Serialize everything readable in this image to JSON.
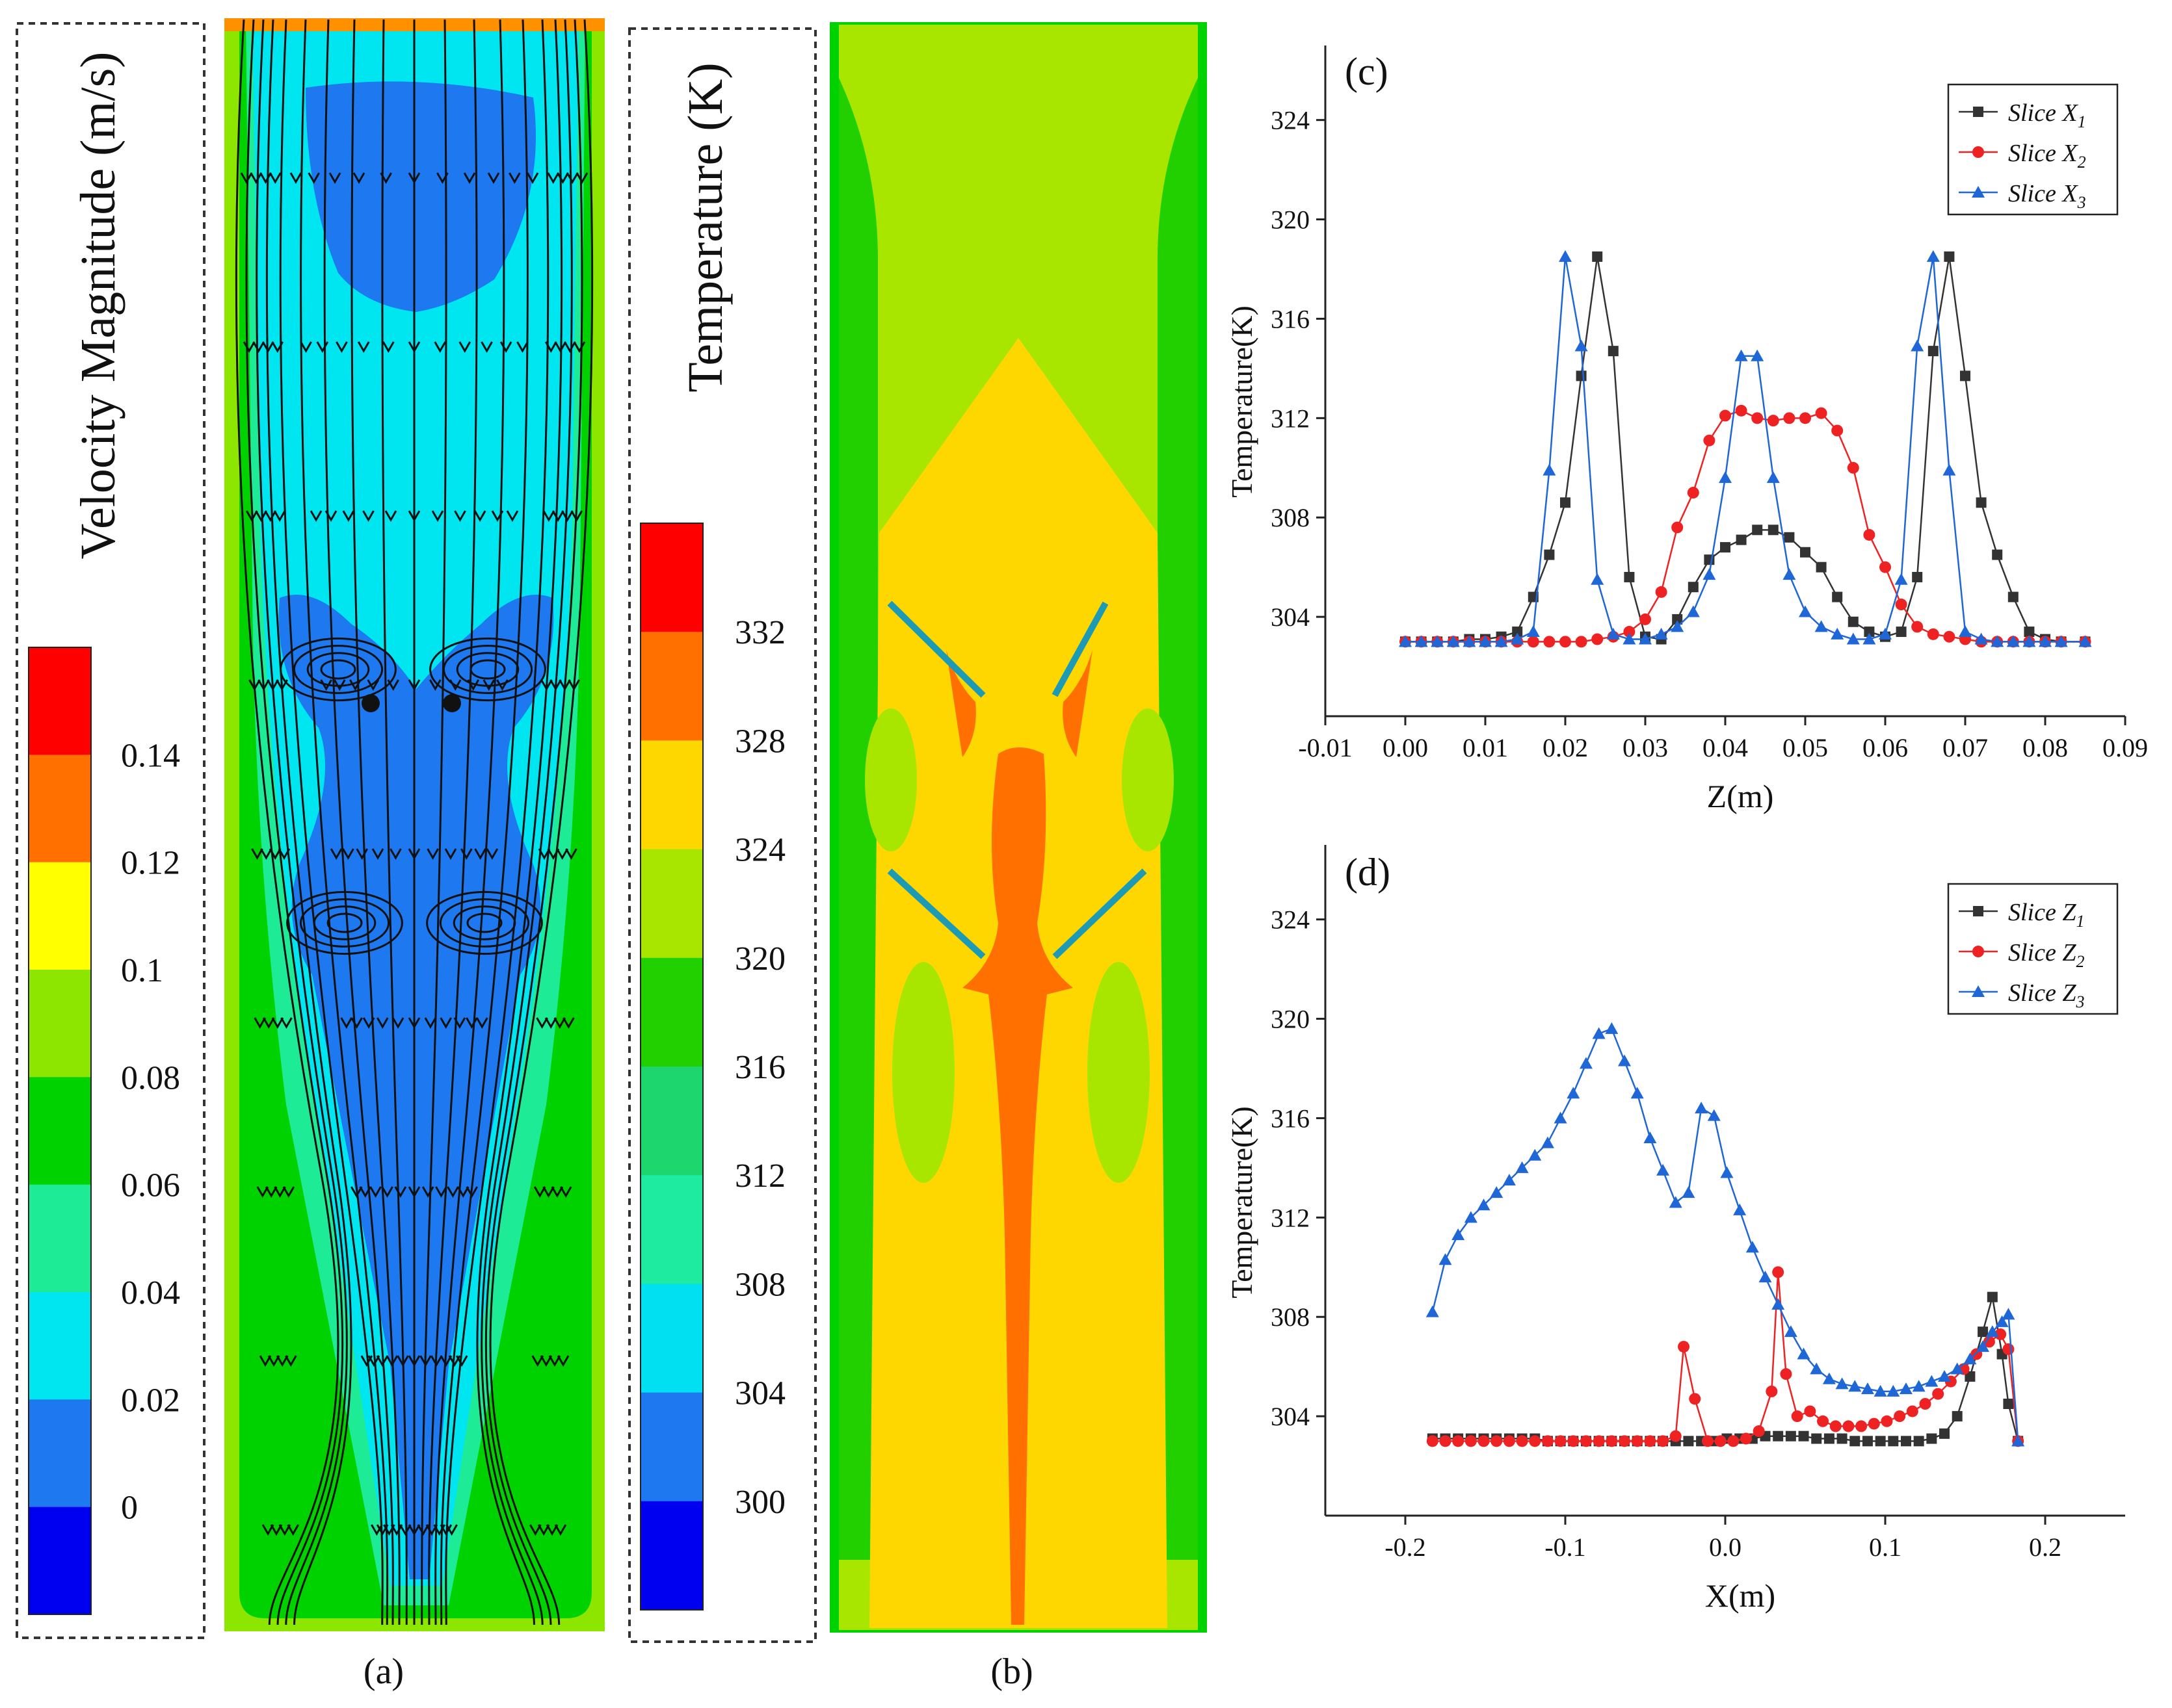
{
  "panel_labels": {
    "a": "(a)",
    "b": "(b)",
    "c": "(c)",
    "d": "(d)"
  },
  "velocity_legend": {
    "title": "Velocity Magnitude (m/s)",
    "ticks": [
      "0.14",
      "0.12",
      "0.1",
      "0.08",
      "0.06",
      "0.04",
      "0.02",
      "0"
    ],
    "colors": [
      "#ff0000",
      "#ff7000",
      "#ffff00",
      "#8de600",
      "#00d200",
      "#1eeb96",
      "#00e6f0",
      "#1e78f0",
      "#0000f0"
    ]
  },
  "temperature_legend": {
    "title": "Temperature (K)",
    "ticks": [
      "332",
      "328",
      "324",
      "320",
      "316",
      "312",
      "308",
      "304",
      "300"
    ],
    "colors": [
      "#ff0000",
      "#ff7000",
      "#ffd700",
      "#a8e600",
      "#22d000",
      "#1ed66e",
      "#1eeba0",
      "#00e0f0",
      "#1e78f0",
      "#0000f0"
    ]
  },
  "chart_data": [
    {
      "type": "line",
      "panel": "(c)",
      "xlabel": "Z(m)",
      "ylabel": "Temperature(K)",
      "xlim": [
        -0.01,
        0.09
      ],
      "ylim": [
        300,
        327
      ],
      "xticks": [
        "-0.01",
        "0.00",
        "0.01",
        "0.02",
        "0.03",
        "0.04",
        "0.05",
        "0.06",
        "0.07",
        "0.08",
        "0.09"
      ],
      "yticks": [
        "304",
        "308",
        "312",
        "316",
        "320",
        "324"
      ],
      "legend": {
        "placement": "top-right",
        "prefix": "Slice X",
        "subs": [
          "1",
          "2",
          "3"
        ]
      },
      "series": [
        {
          "name": "Slice X1",
          "color": "#333333",
          "marker": "square",
          "x": [
            0.0,
            0.002,
            0.004,
            0.006,
            0.008,
            0.01,
            0.012,
            0.014,
            0.016,
            0.018,
            0.02,
            0.022,
            0.024,
            0.026,
            0.028,
            0.03,
            0.032,
            0.034,
            0.036,
            0.038,
            0.04,
            0.042,
            0.044,
            0.046,
            0.048,
            0.05,
            0.052,
            0.054,
            0.056,
            0.058,
            0.06,
            0.062,
            0.064,
            0.066,
            0.068,
            0.07,
            0.072,
            0.074,
            0.076,
            0.078,
            0.08,
            0.082,
            0.085
          ],
          "y": [
            303.0,
            303.0,
            303.0,
            303.0,
            303.1,
            303.1,
            303.2,
            303.4,
            304.8,
            306.5,
            308.6,
            313.7,
            318.5,
            314.7,
            305.6,
            303.2,
            303.1,
            303.9,
            305.2,
            306.3,
            306.8,
            307.1,
            307.5,
            307.5,
            307.2,
            306.6,
            306.0,
            304.8,
            303.8,
            303.4,
            303.2,
            303.4,
            305.6,
            314.7,
            318.5,
            313.7,
            308.6,
            306.5,
            304.8,
            303.4,
            303.1,
            303.0,
            303.0
          ]
        },
        {
          "name": "Slice X2",
          "color": "#ee2222",
          "marker": "circle",
          "x": [
            0.0,
            0.002,
            0.004,
            0.006,
            0.008,
            0.01,
            0.012,
            0.014,
            0.016,
            0.018,
            0.02,
            0.022,
            0.024,
            0.026,
            0.028,
            0.03,
            0.032,
            0.034,
            0.036,
            0.038,
            0.04,
            0.042,
            0.044,
            0.046,
            0.048,
            0.05,
            0.052,
            0.054,
            0.056,
            0.058,
            0.06,
            0.062,
            0.064,
            0.066,
            0.068,
            0.07,
            0.072,
            0.074,
            0.076,
            0.078,
            0.08,
            0.082,
            0.085
          ],
          "y": [
            303.0,
            303.0,
            303.0,
            303.0,
            303.0,
            303.0,
            303.0,
            303.0,
            303.0,
            303.0,
            303.0,
            303.0,
            303.1,
            303.2,
            303.4,
            303.9,
            305.0,
            307.6,
            309.0,
            311.1,
            312.1,
            312.3,
            312.0,
            311.9,
            312.0,
            312.0,
            312.2,
            311.5,
            310.0,
            307.3,
            306.0,
            304.5,
            303.6,
            303.3,
            303.2,
            303.1,
            303.0,
            303.0,
            303.0,
            303.0,
            303.0,
            303.0,
            303.0
          ]
        },
        {
          "name": "Slice X3",
          "color": "#1f66d6",
          "marker": "triangle",
          "x": [
            0.0,
            0.002,
            0.004,
            0.006,
            0.008,
            0.01,
            0.012,
            0.014,
            0.016,
            0.018,
            0.02,
            0.022,
            0.024,
            0.026,
            0.028,
            0.03,
            0.032,
            0.034,
            0.036,
            0.038,
            0.04,
            0.042,
            0.044,
            0.046,
            0.048,
            0.05,
            0.052,
            0.054,
            0.056,
            0.058,
            0.06,
            0.062,
            0.064,
            0.066,
            0.068,
            0.07,
            0.072,
            0.074,
            0.076,
            0.078,
            0.08,
            0.082,
            0.085
          ],
          "y": [
            303.0,
            303.0,
            303.0,
            303.0,
            303.0,
            303.0,
            303.0,
            303.1,
            303.4,
            309.9,
            318.5,
            314.9,
            305.5,
            303.3,
            303.1,
            303.1,
            303.3,
            303.6,
            304.2,
            305.7,
            309.6,
            314.5,
            314.5,
            309.6,
            305.7,
            304.2,
            303.6,
            303.3,
            303.1,
            303.1,
            303.3,
            305.5,
            314.9,
            318.5,
            309.9,
            303.4,
            303.1,
            303.0,
            303.0,
            303.0,
            303.0,
            303.0,
            303.0
          ]
        }
      ]
    },
    {
      "type": "line",
      "panel": "(d)",
      "xlabel": "X(m)",
      "ylabel": "Temperature(K)",
      "xlim": [
        -0.25,
        0.25
      ],
      "ylim": [
        300,
        327
      ],
      "xticks": [
        "-0.2",
        "-0.1",
        "0.0",
        "0.1",
        "0.2"
      ],
      "yticks": [
        "304",
        "308",
        "312",
        "316",
        "320",
        "324"
      ],
      "legend": {
        "placement": "top-right",
        "prefix": "Slice Z",
        "subs": [
          "1",
          "2",
          "3"
        ]
      },
      "series": [
        {
          "name": "Slice Z1",
          "color": "#333333",
          "marker": "square",
          "x": [
            -0.183,
            -0.175,
            -0.167,
            -0.159,
            -0.151,
            -0.143,
            -0.135,
            -0.127,
            -0.119,
            -0.111,
            -0.103,
            -0.095,
            -0.087,
            -0.079,
            -0.071,
            -0.063,
            -0.055,
            -0.047,
            -0.039,
            -0.031,
            -0.023,
            -0.015,
            -0.007,
            0.001,
            0.009,
            0.017,
            0.025,
            0.033,
            0.041,
            0.049,
            0.057,
            0.065,
            0.073,
            0.081,
            0.089,
            0.097,
            0.105,
            0.113,
            0.121,
            0.129,
            0.137,
            0.145,
            0.153,
            0.161,
            0.167,
            0.173,
            0.177,
            0.183
          ],
          "y": [
            303.1,
            303.1,
            303.1,
            303.1,
            303.1,
            303.1,
            303.1,
            303.1,
            303.1,
            303.0,
            303.0,
            303.0,
            303.0,
            303.0,
            303.0,
            303.0,
            303.0,
            303.0,
            303.0,
            303.0,
            303.0,
            303.0,
            303.0,
            303.1,
            303.1,
            303.1,
            303.2,
            303.2,
            303.2,
            303.2,
            303.1,
            303.1,
            303.1,
            303.0,
            303.0,
            303.0,
            303.0,
            303.0,
            303.0,
            303.1,
            303.3,
            304.0,
            305.6,
            307.4,
            308.8,
            306.5,
            304.5,
            303.0
          ]
        },
        {
          "name": "Slice Z2",
          "color": "#ee2222",
          "marker": "circle",
          "x": [
            -0.183,
            -0.175,
            -0.167,
            -0.159,
            -0.151,
            -0.143,
            -0.135,
            -0.127,
            -0.119,
            -0.111,
            -0.103,
            -0.095,
            -0.087,
            -0.079,
            -0.071,
            -0.063,
            -0.055,
            -0.047,
            -0.039,
            -0.031,
            -0.026,
            -0.019,
            -0.011,
            -0.003,
            0.005,
            0.013,
            0.021,
            0.029,
            0.033,
            0.038,
            0.045,
            0.053,
            0.061,
            0.069,
            0.077,
            0.085,
            0.093,
            0.101,
            0.109,
            0.117,
            0.125,
            0.133,
            0.141,
            0.149,
            0.157,
            0.165,
            0.172,
            0.177,
            0.183
          ],
          "y": [
            303.0,
            303.0,
            303.0,
            303.0,
            303.0,
            303.0,
            303.0,
            303.0,
            303.0,
            303.0,
            303.0,
            303.0,
            303.0,
            303.0,
            303.0,
            303.0,
            303.0,
            303.0,
            303.0,
            303.2,
            306.8,
            304.7,
            303.0,
            303.0,
            303.0,
            303.1,
            303.4,
            305.0,
            309.8,
            305.7,
            304.0,
            304.2,
            303.8,
            303.6,
            303.6,
            303.6,
            303.7,
            303.8,
            304.0,
            304.2,
            304.5,
            304.9,
            305.4,
            305.9,
            306.5,
            307.0,
            307.3,
            306.7,
            303.0
          ]
        },
        {
          "name": "Slice Z3",
          "color": "#1f66d6",
          "marker": "triangle",
          "x": [
            -0.183,
            -0.175,
            -0.167,
            -0.159,
            -0.151,
            -0.143,
            -0.135,
            -0.127,
            -0.119,
            -0.111,
            -0.103,
            -0.095,
            -0.087,
            -0.079,
            -0.071,
            -0.063,
            -0.055,
            -0.047,
            -0.039,
            -0.031,
            -0.023,
            -0.015,
            -0.007,
            0.001,
            0.009,
            0.017,
            0.025,
            0.033,
            0.041,
            0.049,
            0.057,
            0.065,
            0.073,
            0.081,
            0.089,
            0.097,
            0.105,
            0.113,
            0.121,
            0.129,
            0.137,
            0.145,
            0.153,
            0.161,
            0.167,
            0.173,
            0.177,
            0.183
          ],
          "y": [
            308.2,
            310.3,
            311.3,
            312.0,
            312.5,
            313.0,
            313.5,
            314.0,
            314.5,
            315.0,
            316.0,
            317.0,
            318.2,
            319.4,
            319.6,
            318.3,
            317.0,
            315.2,
            313.9,
            312.6,
            313.0,
            316.4,
            316.1,
            313.8,
            312.3,
            310.8,
            309.6,
            308.5,
            307.4,
            306.5,
            305.9,
            305.5,
            305.3,
            305.2,
            305.1,
            305.0,
            305.0,
            305.1,
            305.2,
            305.4,
            305.6,
            305.9,
            306.3,
            306.8,
            307.4,
            307.8,
            308.1,
            303.0
          ]
        }
      ]
    }
  ]
}
